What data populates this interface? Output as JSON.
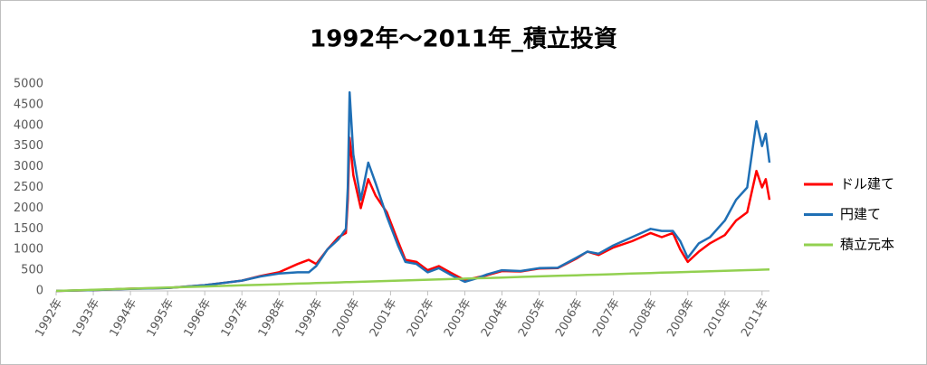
{
  "chart_data": {
    "type": "line",
    "title": "1992年～2011年_積立投資",
    "x": [
      1992,
      1993,
      1994,
      1995,
      1996,
      1997,
      1997.5,
      1998,
      1998.5,
      1998.8,
      1999,
      1999.3,
      1999.6,
      1999.8,
      1999.85,
      1999.9,
      2000.0,
      2000.2,
      2000.4,
      2000.6,
      2000.9,
      2001.2,
      2001.4,
      2001.7,
      2002.0,
      2002.3,
      2002.6,
      2003.0,
      2003.3,
      2003.6,
      2004,
      2004.5,
      2005,
      2005.5,
      2006,
      2006.3,
      2006.6,
      2007,
      2007.5,
      2008,
      2008.3,
      2008.6,
      2008.8,
      2009,
      2009.3,
      2009.6,
      2010,
      2010.3,
      2010.6,
      2010.85,
      2011,
      2011.1,
      2011.2
    ],
    "series": [
      {
        "name": "ドル建て",
        "color": "#ff0000",
        "values": [
          0,
          20,
          55,
          70,
          140,
          250,
          360,
          450,
          650,
          750,
          650,
          1000,
          1300,
          1400,
          2200,
          3700,
          2800,
          2000,
          2700,
          2300,
          1900,
          1200,
          750,
          700,
          500,
          600,
          450,
          260,
          320,
          380,
          480,
          470,
          540,
          550,
          780,
          950,
          870,
          1050,
          1200,
          1400,
          1300,
          1400,
          1000,
          700,
          950,
          1150,
          1350,
          1700,
          1900,
          2900,
          2500,
          2700,
          2200
        ]
      },
      {
        "name": "円建て",
        "color": "#1f6fb5",
        "values": [
          0,
          20,
          50,
          70,
          140,
          250,
          350,
          420,
          450,
          450,
          600,
          1000,
          1250,
          1500,
          2500,
          4800,
          3300,
          2200,
          3100,
          2600,
          1800,
          1100,
          700,
          650,
          450,
          550,
          400,
          220,
          300,
          400,
          500,
          480,
          550,
          560,
          800,
          950,
          900,
          1100,
          1300,
          1500,
          1450,
          1450,
          1200,
          800,
          1150,
          1300,
          1700,
          2200,
          2500,
          4100,
          3500,
          3800,
          3100
        ]
      },
      {
        "name": "積立元本",
        "color": "#92d050",
        "values": [
          0,
          27,
          54,
          81,
          108,
          135,
          149,
          162,
          176,
          184,
          189,
          197,
          205,
          211,
          212,
          213,
          216,
          221,
          227,
          232,
          240,
          248,
          254,
          262,
          270,
          278,
          286,
          297,
          305,
          313,
          324,
          338,
          351,
          365,
          378,
          386,
          394,
          405,
          419,
          432,
          440,
          448,
          454,
          459,
          467,
          475,
          486,
          494,
          502,
          509,
          513,
          516,
          518
        ]
      }
    ],
    "xlim": [
      1992,
      2011.2
    ],
    "xticks": [
      {
        "value": 1992,
        "label": "1992年"
      },
      {
        "value": 1993,
        "label": "1993年"
      },
      {
        "value": 1994,
        "label": "1994年"
      },
      {
        "value": 1995,
        "label": "1995年"
      },
      {
        "value": 1996,
        "label": "1996年"
      },
      {
        "value": 1997,
        "label": "1997年"
      },
      {
        "value": 1998,
        "label": "1998年"
      },
      {
        "value": 1999,
        "label": "1999年"
      },
      {
        "value": 2000,
        "label": "2000年"
      },
      {
        "value": 2001,
        "label": "2001年"
      },
      {
        "value": 2002,
        "label": "2002年"
      },
      {
        "value": 2003,
        "label": "2003年"
      },
      {
        "value": 2004,
        "label": "2004年"
      },
      {
        "value": 2005,
        "label": "2005年"
      },
      {
        "value": 2006,
        "label": "2006年"
      },
      {
        "value": 2007,
        "label": "2007年"
      },
      {
        "value": 2008,
        "label": "2008年"
      },
      {
        "value": 2009,
        "label": "2009年"
      },
      {
        "value": 2010,
        "label": "2010年"
      },
      {
        "value": 2011,
        "label": "2011年"
      }
    ],
    "ylim": [
      0,
      5000
    ],
    "yticks": [
      0,
      500,
      1000,
      1500,
      2000,
      2500,
      3000,
      3500,
      4000,
      4500,
      5000
    ],
    "grid": false,
    "legend": "right"
  }
}
